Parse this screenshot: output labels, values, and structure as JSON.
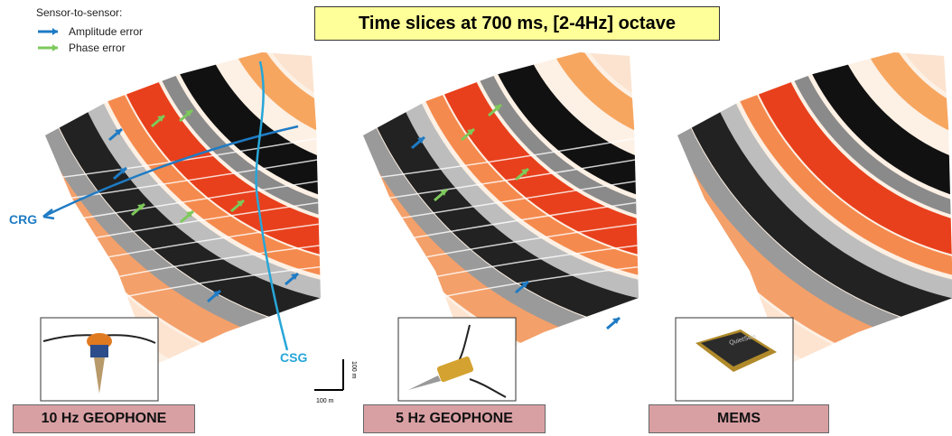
{
  "legend": {
    "title": "Sensor-to-sensor:",
    "items": [
      "Amplitude error",
      "Phase error"
    ]
  },
  "title": "Time slices at 700 ms,  [2-4Hz] octave",
  "annotations": {
    "crg": "CRG",
    "csg": "CSG"
  },
  "scale_bar": {
    "vertical": "100 m",
    "horizontal": "100 m"
  },
  "panels": [
    {
      "label": "10 Hz GEOPHONE"
    },
    {
      "label": "5 Hz GEOPHONE"
    },
    {
      "label": "MEMS",
      "device_text": "QuietSeis"
    }
  ]
}
